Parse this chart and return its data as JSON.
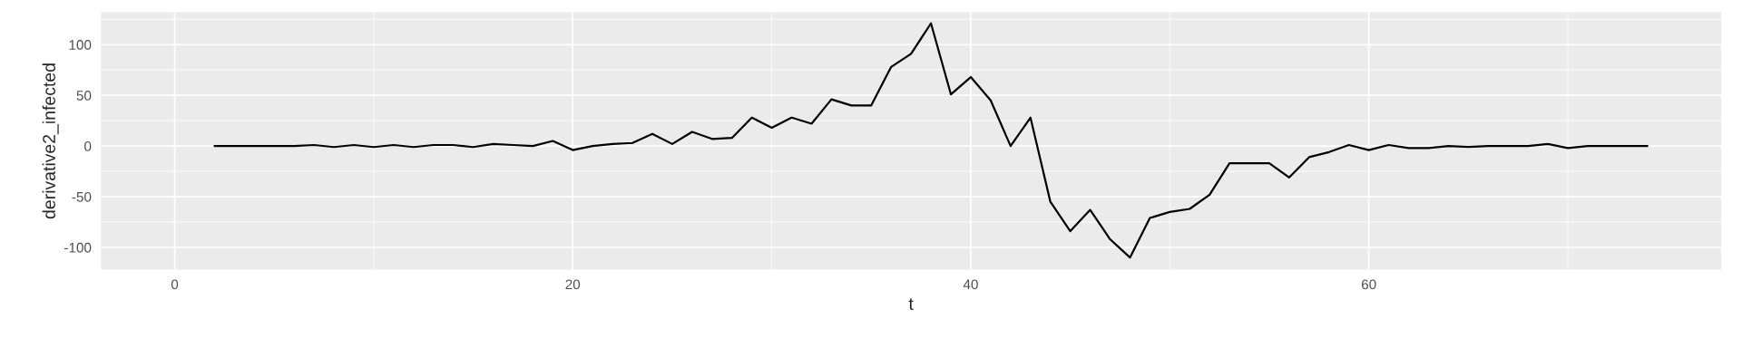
{
  "chart_data": {
    "type": "line",
    "xlabel": "t",
    "ylabel": "derivative2_infected",
    "x": [
      2,
      3,
      4,
      5,
      6,
      7,
      8,
      9,
      10,
      11,
      12,
      13,
      14,
      15,
      16,
      17,
      18,
      19,
      20,
      21,
      22,
      23,
      24,
      25,
      26,
      27,
      28,
      29,
      30,
      31,
      32,
      33,
      34,
      35,
      36,
      37,
      38,
      39,
      40,
      41,
      42,
      43,
      44,
      45,
      46,
      47,
      48,
      49,
      50,
      51,
      52,
      53,
      54,
      55,
      56,
      57,
      58,
      59,
      60,
      61,
      62,
      63,
      64,
      65,
      66,
      67,
      68,
      69,
      70,
      71,
      72,
      73,
      74
    ],
    "values": [
      0,
      0,
      0,
      0,
      0,
      1,
      -1,
      1,
      -1,
      1,
      -1,
      1,
      1,
      -1,
      2,
      1,
      0,
      5,
      -4,
      0,
      2,
      3,
      12,
      2,
      14,
      7,
      8,
      28,
      18,
      28,
      22,
      46,
      40,
      40,
      78,
      91,
      121,
      51,
      68,
      45,
      0,
      28,
      -55,
      -84,
      -63,
      -92,
      -110,
      -71,
      -65,
      -62,
      -48,
      -17,
      -17,
      -17,
      -31,
      -11,
      -6,
      1,
      -4,
      1,
      -2,
      -2,
      0,
      -1,
      0,
      0,
      0,
      2,
      -2,
      0,
      0,
      0,
      0
    ],
    "color": "#000000",
    "xlim": [
      -3.7,
      77.7
    ],
    "xticks": [
      0,
      20,
      40,
      60
    ],
    "ylim": [
      -122,
      132
    ],
    "yticks": [
      -100,
      -50,
      0,
      50,
      100
    ],
    "grid": true
  }
}
